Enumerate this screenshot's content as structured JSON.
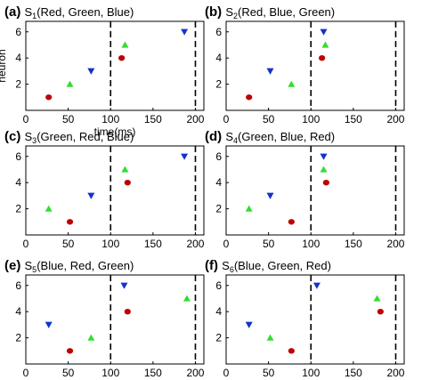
{
  "chart_data": [
    {
      "type": "scatter",
      "panel_label": "(a)",
      "title_prefix": "S",
      "title_sub": "1",
      "title_suffix": "(Red, Green, Blue)",
      "xlim": [
        0,
        210
      ],
      "ylim": [
        0,
        6.8
      ],
      "xticks": [
        "0",
        "50",
        "100",
        "150",
        "200"
      ],
      "yticks": [
        "2",
        "4",
        "6"
      ],
      "xlabel": "time(ms)",
      "ylabel": "neuron",
      "vlines": [
        100,
        200
      ],
      "series": [
        {
          "marker": "circle",
          "color": "#c00000",
          "points": [
            [
              27,
              1
            ],
            [
              113,
              4
            ]
          ]
        },
        {
          "marker": "triangle-up",
          "color": "#33dd33",
          "points": [
            [
              52,
              2
            ],
            [
              117,
              5
            ]
          ]
        },
        {
          "marker": "triangle-down",
          "color": "#1133cc",
          "points": [
            [
              77,
              3
            ],
            [
              187,
              6
            ]
          ]
        }
      ]
    },
    {
      "type": "scatter",
      "panel_label": "(b)",
      "title_prefix": "S",
      "title_sub": "2",
      "title_suffix": "(Red, Blue, Green)",
      "xlim": [
        0,
        210
      ],
      "ylim": [
        0,
        6.8
      ],
      "xticks": [
        "0",
        "50",
        "100",
        "150",
        "200"
      ],
      "yticks": [
        "2",
        "4",
        "6"
      ],
      "xlabel": "",
      "ylabel": "",
      "vlines": [
        100,
        200
      ],
      "series": [
        {
          "marker": "circle",
          "color": "#c00000",
          "points": [
            [
              27,
              1
            ],
            [
              113,
              4
            ]
          ]
        },
        {
          "marker": "triangle-up",
          "color": "#33dd33",
          "points": [
            [
              77,
              2
            ],
            [
              117,
              5
            ]
          ]
        },
        {
          "marker": "triangle-down",
          "color": "#1133cc",
          "points": [
            [
              52,
              3
            ],
            [
              115,
              6
            ]
          ]
        }
      ]
    },
    {
      "type": "scatter",
      "panel_label": "(c)",
      "title_prefix": "S",
      "title_sub": "3",
      "title_suffix": "(Green, Red, Blue)",
      "xlim": [
        0,
        210
      ],
      "ylim": [
        0,
        6.8
      ],
      "xticks": [
        "0",
        "50",
        "100",
        "150",
        "200"
      ],
      "yticks": [
        "2",
        "4",
        "6"
      ],
      "xlabel": "",
      "ylabel": "",
      "vlines": [
        100,
        200
      ],
      "series": [
        {
          "marker": "circle",
          "color": "#c00000",
          "points": [
            [
              52,
              1
            ],
            [
              120,
              4
            ]
          ]
        },
        {
          "marker": "triangle-up",
          "color": "#33dd33",
          "points": [
            [
              27,
              2
            ],
            [
              117,
              5
            ]
          ]
        },
        {
          "marker": "triangle-down",
          "color": "#1133cc",
          "points": [
            [
              77,
              3
            ],
            [
              187,
              6
            ]
          ]
        }
      ]
    },
    {
      "type": "scatter",
      "panel_label": "(d)",
      "title_prefix": "S",
      "title_sub": "4",
      "title_suffix": "(Green, Blue, Red)",
      "xlim": [
        0,
        210
      ],
      "ylim": [
        0,
        6.8
      ],
      "xticks": [
        "0",
        "50",
        "100",
        "150",
        "200"
      ],
      "yticks": [
        "2",
        "4",
        "6"
      ],
      "xlabel": "",
      "ylabel": "",
      "vlines": [
        100,
        200
      ],
      "series": [
        {
          "marker": "circle",
          "color": "#c00000",
          "points": [
            [
              77,
              1
            ],
            [
              118,
              4
            ]
          ]
        },
        {
          "marker": "triangle-up",
          "color": "#33dd33",
          "points": [
            [
              27,
              2
            ],
            [
              115,
              5
            ]
          ]
        },
        {
          "marker": "triangle-down",
          "color": "#1133cc",
          "points": [
            [
              52,
              3
            ],
            [
              115,
              6
            ]
          ]
        }
      ]
    },
    {
      "type": "scatter",
      "panel_label": "(e)",
      "title_prefix": "S",
      "title_sub": "5",
      "title_suffix": "(Blue, Red, Green)",
      "xlim": [
        0,
        210
      ],
      "ylim": [
        0,
        6.8
      ],
      "xticks": [
        "0",
        "50",
        "100",
        "150",
        "200"
      ],
      "yticks": [
        "2",
        "4",
        "6"
      ],
      "xlabel": "",
      "ylabel": "",
      "vlines": [
        100,
        200
      ],
      "series": [
        {
          "marker": "circle",
          "color": "#c00000",
          "points": [
            [
              52,
              1
            ],
            [
              120,
              4
            ]
          ]
        },
        {
          "marker": "triangle-up",
          "color": "#33dd33",
          "points": [
            [
              77,
              2
            ],
            [
              190,
              5
            ]
          ]
        },
        {
          "marker": "triangle-down",
          "color": "#1133cc",
          "points": [
            [
              27,
              3
            ],
            [
              116,
              6
            ]
          ]
        }
      ]
    },
    {
      "type": "scatter",
      "panel_label": "(f)",
      "title_prefix": "S",
      "title_sub": "6",
      "title_suffix": "(Blue, Green, Red)",
      "xlim": [
        0,
        210
      ],
      "ylim": [
        0,
        6.8
      ],
      "xticks": [
        "0",
        "50",
        "100",
        "150",
        "200"
      ],
      "yticks": [
        "2",
        "4",
        "6"
      ],
      "xlabel": "",
      "ylabel": "",
      "vlines": [
        100,
        200
      ],
      "series": [
        {
          "marker": "circle",
          "color": "#c00000",
          "points": [
            [
              77,
              1
            ],
            [
              182,
              4
            ]
          ]
        },
        {
          "marker": "triangle-up",
          "color": "#33dd33",
          "points": [
            [
              52,
              2
            ],
            [
              178,
              5
            ]
          ]
        },
        {
          "marker": "triangle-down",
          "color": "#1133cc",
          "points": [
            [
              27,
              3
            ],
            [
              107,
              6
            ]
          ]
        }
      ]
    }
  ]
}
